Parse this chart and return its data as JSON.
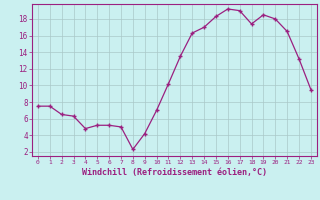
{
  "x": [
    0,
    1,
    2,
    3,
    4,
    5,
    6,
    7,
    8,
    9,
    10,
    11,
    12,
    13,
    14,
    15,
    16,
    17,
    18,
    19,
    20,
    21,
    22,
    23
  ],
  "y": [
    7.5,
    7.5,
    6.5,
    6.3,
    4.8,
    5.2,
    5.2,
    5.0,
    2.3,
    4.2,
    7.0,
    10.2,
    13.5,
    16.3,
    17.0,
    18.3,
    19.2,
    19.0,
    17.4,
    18.5,
    18.0,
    16.5,
    13.2,
    9.5
  ],
  "line_color": "#9b2080",
  "marker": "+",
  "marker_size": 3,
  "bg_color": "#caf0f0",
  "grid_color": "#aac8c8",
  "xlabel": "Windchill (Refroidissement éolien,°C)",
  "xlim": [
    -0.5,
    23.5
  ],
  "ylim": [
    1.5,
    19.8
  ],
  "yticks": [
    2,
    4,
    6,
    8,
    10,
    12,
    14,
    16,
    18
  ],
  "xticks": [
    0,
    1,
    2,
    3,
    4,
    5,
    6,
    7,
    8,
    9,
    10,
    11,
    12,
    13,
    14,
    15,
    16,
    17,
    18,
    19,
    20,
    21,
    22,
    23
  ],
  "tick_color": "#9b2080",
  "label_color": "#9b2080",
  "spine_color": "#9b2080"
}
